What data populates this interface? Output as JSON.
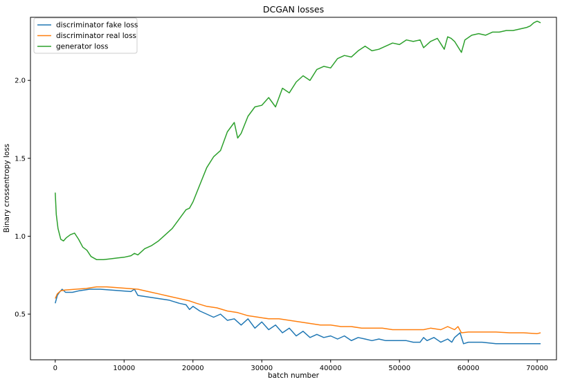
{
  "chart_data": {
    "type": "line",
    "title": "DCGAN losses",
    "xlabel": "batch number",
    "ylabel": "Binary crossentropy loss",
    "xlim": [
      -3600,
      72800
    ],
    "ylim": [
      0.207,
      2.405
    ],
    "x_ticks": [
      0,
      10000,
      20000,
      30000,
      40000,
      50000,
      60000,
      70000
    ],
    "x_tick_labels": [
      "0",
      "10000",
      "20000",
      "30000",
      "40000",
      "50000",
      "60000",
      "70000"
    ],
    "y_ticks": [
      0.5,
      1.0,
      1.5,
      2.0
    ],
    "y_tick_labels": [
      "0.5",
      "1.0",
      "1.5",
      "2.0"
    ],
    "grid": false,
    "legend_position": "top-left",
    "series": [
      {
        "name": "discriminator fake loss",
        "color": "#1f77b4",
        "x": [
          0,
          300,
          600,
          1000,
          1500,
          2500,
          3500,
          5000,
          6500,
          8000,
          9500,
          11000,
          11500,
          12000,
          13500,
          15000,
          16500,
          18000,
          19000,
          19500,
          20000,
          21000,
          22000,
          23000,
          24000,
          25000,
          26000,
          27000,
          28000,
          29000,
          30000,
          31000,
          32000,
          33000,
          34000,
          35000,
          36000,
          37000,
          38000,
          39000,
          40000,
          41000,
          42000,
          43000,
          44000,
          45000,
          46000,
          47000,
          48000,
          49000,
          50000,
          51000,
          52000,
          53000,
          53500,
          54000,
          55000,
          56000,
          57000,
          57600,
          58000,
          58800,
          59300,
          60000,
          62000,
          64000,
          66000,
          68000,
          70000,
          70500
        ],
        "values": [
          0.57,
          0.62,
          0.64,
          0.66,
          0.64,
          0.64,
          0.65,
          0.66,
          0.66,
          0.655,
          0.65,
          0.645,
          0.66,
          0.62,
          0.61,
          0.6,
          0.59,
          0.57,
          0.56,
          0.53,
          0.55,
          0.52,
          0.5,
          0.48,
          0.5,
          0.46,
          0.47,
          0.43,
          0.47,
          0.41,
          0.45,
          0.4,
          0.43,
          0.38,
          0.41,
          0.36,
          0.39,
          0.35,
          0.37,
          0.35,
          0.36,
          0.34,
          0.36,
          0.33,
          0.35,
          0.34,
          0.33,
          0.34,
          0.33,
          0.33,
          0.33,
          0.33,
          0.32,
          0.32,
          0.35,
          0.33,
          0.35,
          0.32,
          0.34,
          0.32,
          0.35,
          0.38,
          0.31,
          0.32,
          0.32,
          0.31,
          0.31,
          0.31,
          0.31,
          0.31
        ]
      },
      {
        "name": "discriminator real loss",
        "color": "#ff7f0e",
        "x": [
          0,
          300,
          800,
          1500,
          3000,
          4500,
          6000,
          7500,
          9000,
          10500,
          12000,
          13500,
          15000,
          16500,
          18000,
          19500,
          20500,
          22000,
          23500,
          25000,
          26500,
          28000,
          29500,
          31000,
          32500,
          34000,
          35500,
          37000,
          38500,
          40000,
          41500,
          43000,
          44500,
          46000,
          47500,
          49000,
          50500,
          52000,
          53500,
          54500,
          56000,
          57000,
          58000,
          58500,
          59000,
          60000,
          62000,
          64000,
          66000,
          68000,
          70000,
          70500
        ],
        "values": [
          0.6,
          0.63,
          0.65,
          0.655,
          0.66,
          0.665,
          0.675,
          0.675,
          0.67,
          0.665,
          0.66,
          0.645,
          0.63,
          0.615,
          0.6,
          0.585,
          0.57,
          0.55,
          0.54,
          0.52,
          0.51,
          0.49,
          0.48,
          0.47,
          0.47,
          0.46,
          0.45,
          0.44,
          0.43,
          0.43,
          0.42,
          0.42,
          0.41,
          0.41,
          0.41,
          0.4,
          0.4,
          0.4,
          0.4,
          0.41,
          0.4,
          0.42,
          0.4,
          0.42,
          0.38,
          0.385,
          0.385,
          0.385,
          0.38,
          0.38,
          0.375,
          0.38
        ]
      },
      {
        "name": "generator loss",
        "color": "#2ca02c",
        "x": [
          0,
          150,
          400,
          800,
          1200,
          1600,
          2200,
          2800,
          3400,
          4000,
          4600,
          5200,
          6000,
          7000,
          8000,
          9000,
          10000,
          11000,
          11500,
          12000,
          13000,
          14000,
          15000,
          16000,
          17000,
          18000,
          19000,
          19500,
          20000,
          21000,
          22000,
          23000,
          24000,
          25000,
          26000,
          26500,
          27000,
          28000,
          29000,
          30000,
          31000,
          32000,
          33000,
          34000,
          35000,
          36000,
          37000,
          38000,
          39000,
          40000,
          41000,
          42000,
          43000,
          44000,
          45000,
          46000,
          47000,
          48000,
          49000,
          50000,
          51000,
          52000,
          53000,
          53500,
          54500,
          55500,
          56500,
          57000,
          57500,
          58000,
          59000,
          59500,
          60500,
          61500,
          62500,
          63500,
          64500,
          65500,
          66500,
          67500,
          68500,
          69000,
          69500,
          70000,
          70500
        ],
        "values": [
          1.28,
          1.14,
          1.05,
          0.98,
          0.97,
          0.99,
          1.01,
          1.02,
          0.98,
          0.93,
          0.91,
          0.87,
          0.85,
          0.85,
          0.855,
          0.86,
          0.865,
          0.875,
          0.89,
          0.88,
          0.92,
          0.94,
          0.97,
          1.01,
          1.05,
          1.11,
          1.17,
          1.18,
          1.22,
          1.33,
          1.44,
          1.51,
          1.55,
          1.67,
          1.73,
          1.63,
          1.66,
          1.77,
          1.83,
          1.84,
          1.89,
          1.83,
          1.95,
          1.92,
          1.99,
          2.03,
          2.0,
          2.07,
          2.09,
          2.08,
          2.14,
          2.16,
          2.15,
          2.19,
          2.22,
          2.19,
          2.2,
          2.22,
          2.24,
          2.23,
          2.26,
          2.25,
          2.26,
          2.21,
          2.25,
          2.27,
          2.2,
          2.28,
          2.27,
          2.25,
          2.18,
          2.26,
          2.29,
          2.3,
          2.29,
          2.31,
          2.31,
          2.32,
          2.32,
          2.33,
          2.34,
          2.35,
          2.37,
          2.38,
          2.37
        ]
      }
    ]
  }
}
